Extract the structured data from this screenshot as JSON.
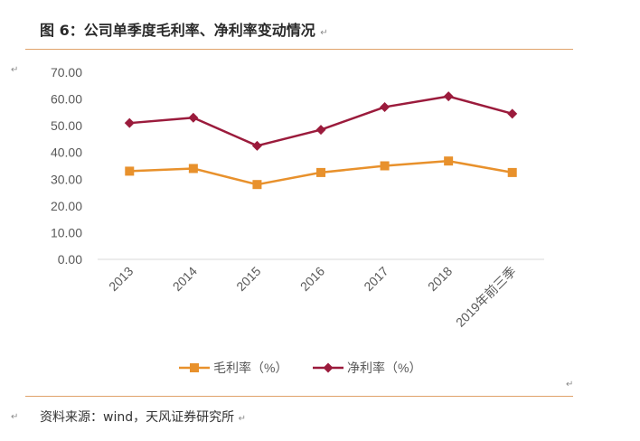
{
  "header": {
    "title": "图 6：公司单季度毛利率、净利率变动情况"
  },
  "footer": {
    "source": "资料来源：wind，天风证券研究所"
  },
  "marks": {
    "paragraph": "↵"
  },
  "colors": {
    "gross": "#e8912c",
    "net": "#9b1b3c",
    "rule": "#e0a26a",
    "axis": "#d9d9d9",
    "text": "#595959"
  },
  "chart_data": {
    "type": "line",
    "categories": [
      "2013",
      "2014",
      "2015",
      "2016",
      "2017",
      "2018",
      "2019年前三季"
    ],
    "series": [
      {
        "name": "毛利率（%）",
        "marker": "square",
        "values": [
          33.0,
          34.0,
          28.0,
          32.5,
          35.0,
          36.8,
          32.5
        ]
      },
      {
        "name": "净利率（%）",
        "marker": "diamond",
        "values": [
          51.0,
          53.0,
          42.5,
          48.5,
          57.0,
          61.0,
          54.5
        ]
      }
    ],
    "ylim": [
      0,
      70
    ],
    "yticks": [
      "0.00",
      "10.00",
      "20.00",
      "30.00",
      "40.00",
      "50.00",
      "60.00",
      "70.00"
    ],
    "xlabel": "",
    "ylabel": "",
    "grid": false,
    "legend": "bottom"
  }
}
